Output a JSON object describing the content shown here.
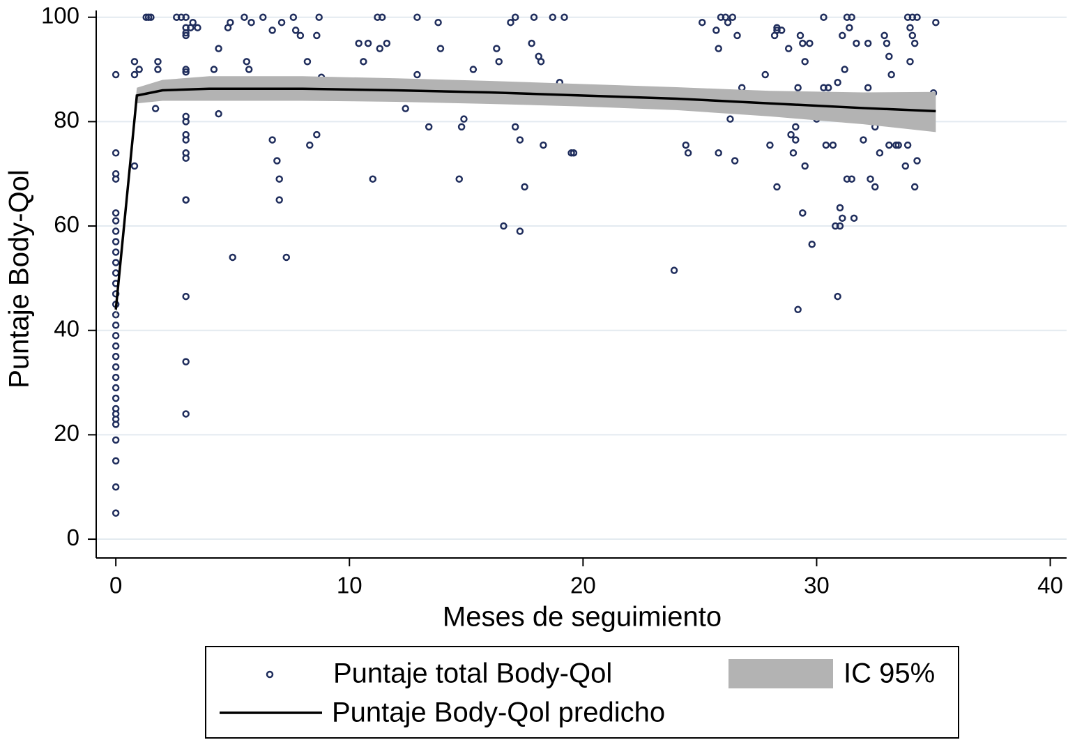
{
  "chart_data": {
    "type": "scatter",
    "x_label": "Meses de seguimiento",
    "y_label": "Puntaje Body-Qol",
    "xlim": [
      -0.84,
      40.7
    ],
    "ylim": [
      -3.6,
      101.3
    ],
    "xticks": [
      0,
      10,
      20,
      30,
      40
    ],
    "yticks": [
      0,
      20,
      40,
      60,
      80,
      100
    ],
    "grid": true,
    "series": [
      {
        "name": "Puntaje total Body-Qol",
        "color": "#1f2d5c",
        "x": [
          0,
          0,
          0,
          0,
          0,
          0,
          0,
          0,
          0,
          0,
          0,
          0,
          0,
          0,
          0,
          0,
          0,
          0,
          0,
          0,
          0,
          0,
          0,
          0,
          0,
          0,
          0,
          0,
          0,
          0,
          0,
          0.8,
          0.8,
          0.8,
          1.0,
          1.3,
          1.4,
          1.5,
          1.7,
          1.8,
          1.8,
          2.6,
          2.8,
          3,
          3,
          3,
          3,
          3,
          3,
          3,
          3,
          3,
          3,
          3,
          3,
          3,
          3,
          3,
          3,
          3,
          3.2,
          3.3,
          3.5,
          4.2,
          4.4,
          4.4,
          4.8,
          4.9,
          5.0,
          5.5,
          5.6,
          5.7,
          5.8,
          6.3,
          6.7,
          6.7,
          6.9,
          7.0,
          7.0,
          7.1,
          7.3,
          7.6,
          7.7,
          7.9,
          8.2,
          8.3,
          8.6,
          8.6,
          8.7,
          8.8,
          10.4,
          10.6,
          10.8,
          11.0,
          11.2,
          11.3,
          11.4,
          11.6,
          12.4,
          12.9,
          12.9,
          13.4,
          13.8,
          13.9,
          14.7,
          14.8,
          14.9,
          15.3,
          16.3,
          16.4,
          16.6,
          16.9,
          17.1,
          17.1,
          17.3,
          17.3,
          17.5,
          17.8,
          17.9,
          18.1,
          18.2,
          18.3,
          18.7,
          19.0,
          19.2,
          19.5,
          19.6,
          23.9,
          24.4,
          24.5,
          25.1,
          25.7,
          25.8,
          25.8,
          25.9,
          26.1,
          26.2,
          26.3,
          26.4,
          26.5,
          26.6,
          26.8,
          27.8,
          28.0,
          28.2,
          28.3,
          28.3,
          28.5,
          28.8,
          28.9,
          29.0,
          29.1,
          29.1,
          29.2,
          29.2,
          29.3,
          29.4,
          29.4,
          29.5,
          29.5,
          29.7,
          29.8,
          30.0,
          30.3,
          30.3,
          30.4,
          30.5,
          30.7,
          30.8,
          30.9,
          30.9,
          31.0,
          31.0,
          31.1,
          31.1,
          31.2,
          31.3,
          31.3,
          31.4,
          31.5,
          31.5,
          31.6,
          31.7,
          32.0,
          32.2,
          32.3,
          32.5,
          32.5,
          32.7,
          32.9,
          33.0,
          33.1,
          33.1,
          33.2,
          33.4,
          33.5,
          33.8,
          33.9,
          33.9,
          34.0,
          34.0,
          34.1,
          34.1,
          34.2,
          34.2,
          34.3,
          34.3,
          35.0,
          35.1,
          32.2,
          28.3
        ],
        "values": [
          5,
          10,
          15,
          19,
          22,
          23,
          24,
          25,
          27,
          29,
          31,
          33,
          35,
          37,
          39,
          41,
          43,
          45,
          47,
          49,
          51,
          53,
          55,
          57,
          59,
          61,
          62.5,
          69,
          70,
          74,
          89,
          91.5,
          89,
          71.5,
          90,
          100,
          100,
          100,
          82.5,
          91.5,
          90,
          100,
          100,
          100,
          98,
          97,
          96.5,
          90,
          89.5,
          81,
          80,
          77.5,
          76.5,
          74,
          73,
          65,
          65,
          46.5,
          34,
          24,
          98,
          99,
          98,
          90,
          94,
          81.5,
          98,
          99,
          54,
          100,
          91.5,
          90,
          99,
          100,
          97.5,
          76.5,
          72.5,
          65,
          69,
          99,
          54,
          100,
          97.5,
          96.5,
          91.5,
          75.5,
          77.5,
          96.5,
          100,
          88.5,
          95,
          91.5,
          95,
          69,
          100,
          94,
          100,
          95,
          82.5,
          100,
          89,
          79,
          99,
          94,
          69,
          79,
          80.5,
          90,
          94,
          91.5,
          60,
          99,
          100,
          79,
          76.5,
          59,
          67.5,
          95,
          100,
          92.5,
          91.5,
          75.5,
          100,
          87.5,
          100,
          74,
          74,
          51.5,
          75.5,
          74,
          99,
          97.5,
          74,
          94,
          100,
          100,
          99,
          80.5,
          100,
          72.5,
          96.5,
          86.5,
          89,
          75.5,
          96.5,
          97.5,
          67.5,
          97.5,
          94,
          77.5,
          74,
          79,
          76.5,
          44,
          86.5,
          96.5,
          62.5,
          95,
          71.5,
          91.5,
          95,
          56.5,
          80.5,
          100,
          86.5,
          75.5,
          86.5,
          75.5,
          60,
          46.5,
          87.5,
          60,
          63.5,
          96.5,
          61.5,
          90,
          100,
          69,
          98,
          100,
          69,
          61.5,
          95,
          76.5,
          95,
          69,
          67.5,
          79,
          74,
          96.5,
          95,
          92.5,
          75.5,
          89,
          75.5,
          75.5,
          71.5,
          100,
          75.5,
          98,
          91.5,
          96.5,
          100,
          95,
          67.5,
          100,
          72.5,
          85.5,
          99,
          86.5,
          98
        ]
      },
      {
        "name": "IC 95%",
        "type": "band",
        "color": "#b3b3b3",
        "x": [
          0,
          0.9,
          2,
          4,
          8,
          12,
          16,
          20,
          24,
          28,
          32,
          35.1
        ],
        "upper": [
          46,
          86.5,
          88,
          88.7,
          88.7,
          88.3,
          87.8,
          87.2,
          86.6,
          85.9,
          85.6,
          85.7
        ],
        "lower": [
          42,
          83.5,
          84,
          84,
          84,
          83.8,
          83.4,
          82.9,
          82.2,
          81,
          79.5,
          78
        ]
      },
      {
        "name": "Puntaje Body-Qol predicho",
        "type": "line",
        "color": "#000000",
        "x": [
          0,
          0.9,
          2,
          4,
          8,
          12,
          16,
          20,
          24,
          28,
          32,
          35.1
        ],
        "values": [
          44,
          85,
          86,
          86.3,
          86.3,
          86,
          85.6,
          85,
          84.4,
          83.5,
          82.6,
          82
        ]
      }
    ]
  }
}
